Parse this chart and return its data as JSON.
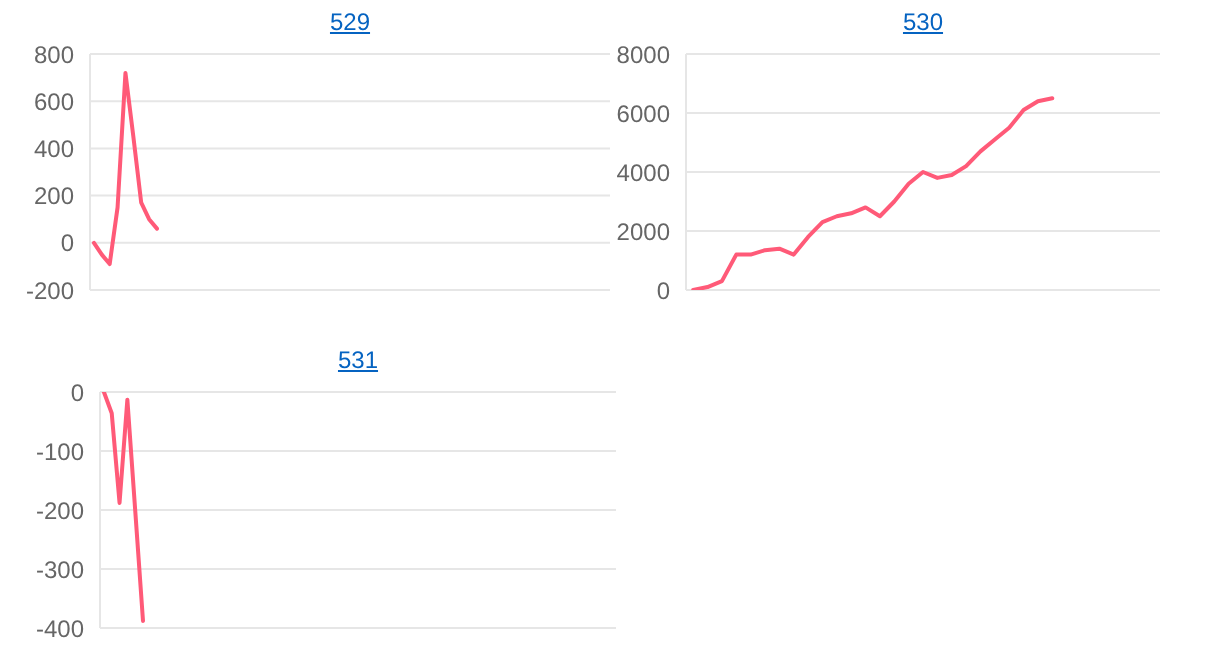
{
  "chart_data": [
    {
      "type": "line",
      "title": "529",
      "categories": [
        null,
        null,
        null,
        null,
        null,
        null,
        null,
        null,
        null,
        null,
        null,
        null,
        null,
        null,
        null,
        null,
        null,
        null,
        null,
        null,
        null,
        null,
        null,
        null,
        null,
        null,
        null,
        null,
        null,
        null,
        null,
        null,
        null,
        null,
        null,
        null,
        null,
        null,
        null,
        null,
        null,
        null,
        null,
        null,
        null,
        null,
        null,
        null,
        null,
        null,
        null,
        null,
        null,
        null,
        null,
        null,
        null,
        null,
        null,
        null,
        null,
        null,
        null,
        null,
        null,
        null
      ],
      "series": [
        {
          "color": "#ff5a78",
          "values": [
            0,
            -50,
            -90,
            150,
            720,
            450,
            170,
            100,
            60,
            null,
            null,
            null,
            null,
            null,
            null,
            null,
            null,
            null,
            null,
            null,
            null,
            null,
            null,
            null,
            null,
            null,
            null,
            null,
            null,
            null,
            null,
            null,
            null,
            null,
            null,
            null,
            null,
            null,
            null,
            null,
            null,
            null,
            null,
            null,
            null,
            null,
            null,
            null,
            null,
            null,
            null,
            null,
            null,
            null,
            null,
            null,
            null,
            null,
            null,
            null,
            null,
            null,
            null,
            null,
            null,
            null
          ]
        }
      ],
      "ylim": [
        -200,
        800
      ],
      "yticks": [
        -200,
        0,
        200,
        400,
        600,
        800
      ],
      "grid": "y",
      "tick_labels": "y",
      "marker": "none",
      "line_style": "solid"
    },
    {
      "type": "line",
      "title": "530",
      "categories": [
        null,
        null,
        null,
        null,
        null,
        null,
        null,
        null,
        null,
        null,
        null,
        null,
        null,
        null,
        null,
        null,
        null,
        null,
        null,
        null,
        null,
        null,
        null,
        null,
        null,
        null,
        null,
        null,
        null,
        null,
        null,
        null,
        null
      ],
      "series": [
        {
          "color": "#ff5a78",
          "values": [
            0,
            100,
            300,
            1200,
            1200,
            1350,
            1400,
            1200,
            1800,
            2300,
            2500,
            2600,
            2800,
            2500,
            3000,
            3600,
            4000,
            3800,
            3900,
            4200,
            4700,
            5100,
            5500,
            6100,
            6400,
            6500,
            null,
            null,
            null,
            null,
            null,
            null,
            null
          ]
        }
      ],
      "ylim": [
        0,
        8000
      ],
      "yticks": [
        0,
        2000,
        4000,
        6000,
        8000
      ],
      "grid": "y",
      "tick_labels": "y",
      "marker": "none",
      "line_style": "solid"
    },
    {
      "type": "line",
      "title": "531",
      "categories": [
        null,
        null,
        null,
        null,
        null,
        null,
        null,
        null,
        null,
        null,
        null,
        null,
        null,
        null,
        null,
        null,
        null,
        null,
        null,
        null,
        null,
        null,
        null,
        null,
        null,
        null,
        null,
        null,
        null,
        null,
        null,
        null,
        null,
        null,
        null,
        null,
        null,
        null,
        null,
        null,
        null,
        null,
        null,
        null,
        null,
        null,
        null,
        null,
        null,
        null,
        null,
        null,
        null,
        null,
        null,
        null,
        null,
        null,
        null,
        null,
        null,
        null,
        null,
        null,
        null,
        null
      ],
      "series": [
        {
          "color": "#ff5a78",
          "values": [
            0,
            -36,
            -188,
            -13,
            -200,
            -388,
            null,
            null,
            null,
            null,
            null,
            null,
            null,
            null,
            null,
            null,
            null,
            null,
            null,
            null,
            null,
            null,
            null,
            null,
            null,
            null,
            null,
            null,
            null,
            null,
            null,
            null,
            null,
            null,
            null,
            null,
            null,
            null,
            null,
            null,
            null,
            null,
            null,
            null,
            null,
            null,
            null,
            null,
            null,
            null,
            null,
            null,
            null,
            null,
            null,
            null,
            null,
            null,
            null,
            null,
            null,
            null,
            null,
            null,
            null,
            null
          ]
        }
      ],
      "ylim": [
        -400,
        0
      ],
      "yticks": [
        -400,
        -300,
        -200,
        -100,
        0
      ],
      "grid": "y",
      "tick_labels": "y",
      "marker": "none",
      "line_style": "solid"
    }
  ]
}
